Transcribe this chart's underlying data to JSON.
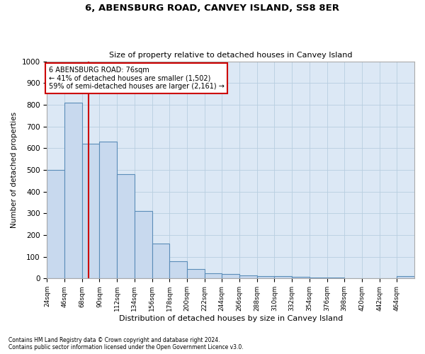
{
  "title": "6, ABENSBURG ROAD, CANVEY ISLAND, SS8 8ER",
  "subtitle": "Size of property relative to detached houses in Canvey Island",
  "xlabel": "Distribution of detached houses by size in Canvey Island",
  "ylabel": "Number of detached properties",
  "bar_color": "#c8d9ee",
  "bar_edge_color": "#5b8db8",
  "background_color": "#dce8f5",
  "grid_color": "#b8cee0",
  "annotation_box_edge": "#cc0000",
  "annotation_text_line1": "6 ABENSBURG ROAD: 76sqm",
  "annotation_text_line2": "← 41% of detached houses are smaller (1,502)",
  "annotation_text_line3": "59% of semi-detached houses are larger (2,161) →",
  "property_line_x": 76,
  "property_line_color": "#cc0000",
  "categories": [
    "24sqm",
    "46sqm",
    "68sqm",
    "90sqm",
    "112sqm",
    "134sqm",
    "156sqm",
    "178sqm",
    "200sqm",
    "222sqm",
    "244sqm",
    "266sqm",
    "288sqm",
    "310sqm",
    "332sqm",
    "354sqm",
    "376sqm",
    "398sqm",
    "420sqm",
    "442sqm",
    "464sqm"
  ],
  "bin_edges": [
    24,
    46,
    68,
    90,
    112,
    134,
    156,
    178,
    200,
    222,
    244,
    266,
    288,
    310,
    332,
    354,
    376,
    398,
    420,
    442,
    464,
    486
  ],
  "values": [
    500,
    810,
    620,
    630,
    480,
    310,
    162,
    80,
    45,
    25,
    20,
    15,
    12,
    10,
    7,
    3,
    3,
    2,
    0,
    0,
    10
  ],
  "ylim": [
    0,
    1000
  ],
  "yticks": [
    0,
    100,
    200,
    300,
    400,
    500,
    600,
    700,
    800,
    900,
    1000
  ],
  "xlim_min": 24,
  "xlim_max": 486,
  "footnote1": "Contains HM Land Registry data © Crown copyright and database right 2024.",
  "footnote2": "Contains public sector information licensed under the Open Government Licence v3.0."
}
